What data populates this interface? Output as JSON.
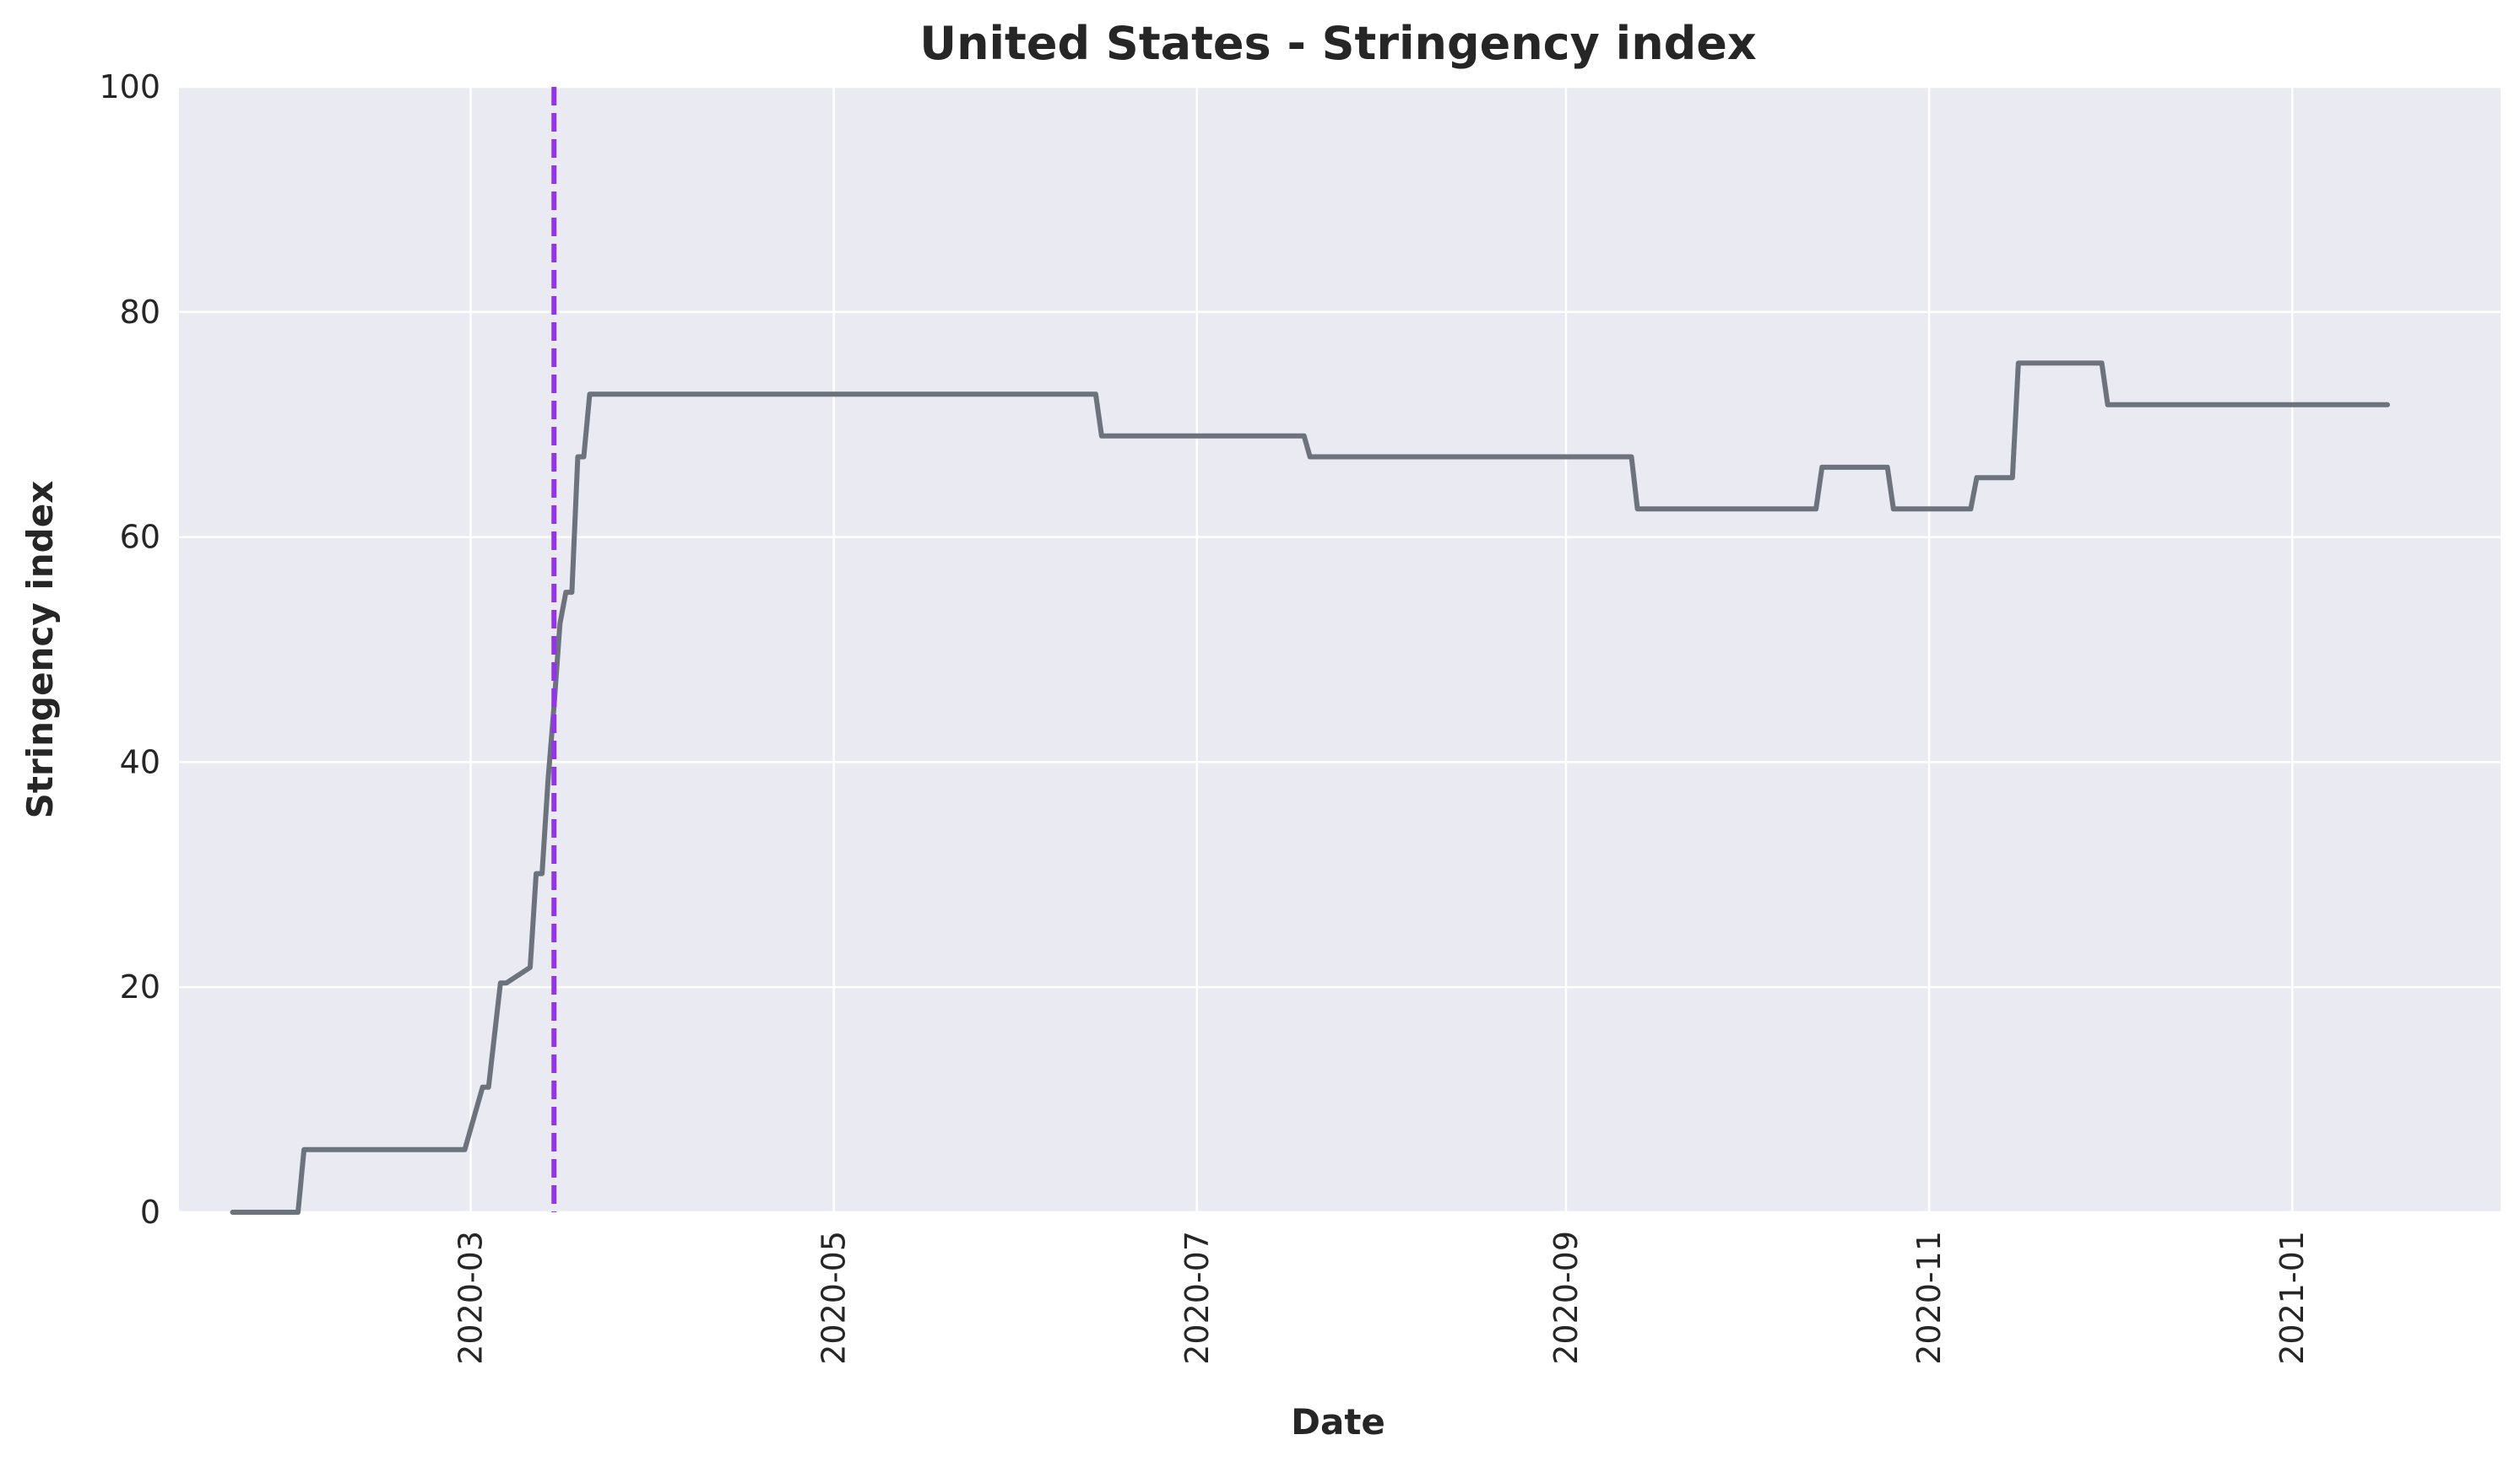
{
  "chart_data": {
    "type": "line",
    "title": "United States - Stringency index",
    "xlabel": "Date",
    "ylabel": "Stringency index",
    "ylim": [
      0,
      100
    ],
    "yticks": [
      0,
      20,
      40,
      60,
      80,
      100
    ],
    "xlim": [
      "2020-01-12",
      "2021-02-05"
    ],
    "xticks": [
      "2020-03",
      "2020-05",
      "2020-07",
      "2020-09",
      "2020-11",
      "2021-01"
    ],
    "grid": true,
    "background": "#eaeaf2",
    "line_color": "#6c737c",
    "marker_color": "#9333ea",
    "vertical_marker": {
      "date": "2020-03-15",
      "style": "dashed"
    },
    "series": [
      {
        "x": [
          "2020-01-21",
          "2020-02-01",
          "2020-02-02",
          "2020-02-29",
          "2020-03-03",
          "2020-03-04",
          "2020-03-06",
          "2020-03-07",
          "2020-03-11",
          "2020-03-12",
          "2020-03-13",
          "2020-03-14",
          "2020-03-15",
          "2020-03-16",
          "2020-03-17",
          "2020-03-18",
          "2020-03-19",
          "2020-03-20",
          "2020-03-21",
          "2020-03-22",
          "2020-06-14",
          "2020-06-15",
          "2020-07-19",
          "2020-07-20",
          "2020-09-12",
          "2020-09-13",
          "2020-10-13",
          "2020-10-14",
          "2020-10-25",
          "2020-10-26",
          "2020-11-08",
          "2020-11-09",
          "2020-11-15",
          "2020-11-16",
          "2020-11-30",
          "2020-12-01",
          "2021-01-17"
        ],
        "y": [
          0,
          0,
          5.56,
          5.56,
          11.11,
          11.11,
          20.37,
          20.37,
          21.76,
          30.09,
          30.09,
          38.43,
          44.91,
          52.31,
          55.09,
          55.09,
          67.13,
          67.13,
          72.69,
          72.69,
          72.69,
          68.98,
          68.98,
          67.13,
          67.13,
          62.5,
          62.5,
          66.2,
          66.2,
          62.5,
          62.5,
          65.28,
          65.28,
          75.46,
          75.46,
          71.76,
          71.76
        ]
      }
    ]
  }
}
